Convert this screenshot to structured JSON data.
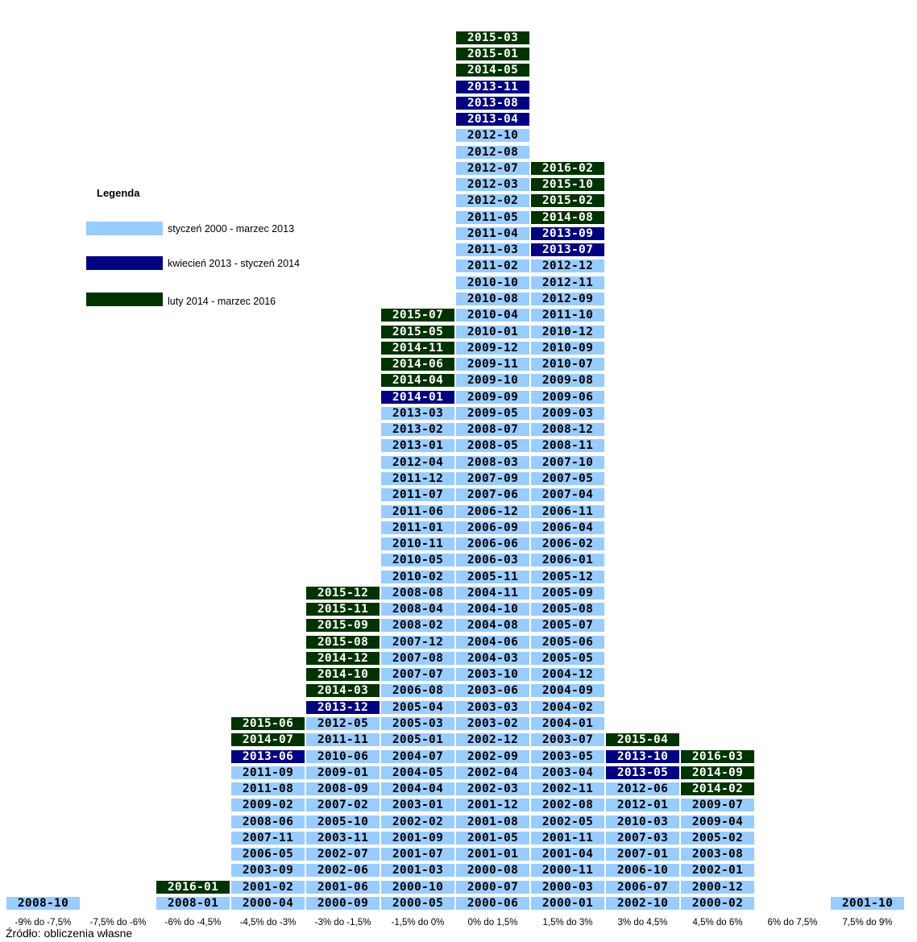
{
  "chart_data": {
    "type": "table",
    "colors": {
      "p1": "#99ccff",
      "p2": "#000080",
      "p3": "#003300"
    },
    "text_colors": {
      "p1": "#000000",
      "p2": "#ffffff",
      "p3": "#ffffff"
    },
    "legend": {
      "title": "Legenda",
      "items": [
        {
          "key": "p1",
          "label": "styczeń 2000 - marzec 2013"
        },
        {
          "key": "p2",
          "label": "kwiecień 2013 - styczeń 2014"
        },
        {
          "key": "p3",
          "label": "luty 2014 - marzec 2016"
        }
      ]
    },
    "categories": [
      "-9% do -7,5%",
      "-7,5% do -6%",
      "-6% do -4,5%",
      "-4,5% do -3%",
      "-3% do -1,5%",
      "-1,5% do 0%",
      "0% do 1,5%",
      "1,5% do 3%",
      "3% do 4,5%",
      "4,5% do 6%",
      "6% do 7,5%",
      "7,5% do 9%"
    ],
    "columns": [
      [
        [
          "2008-10",
          "p1"
        ]
      ],
      [],
      [
        [
          "2008-01",
          "p1"
        ],
        [
          "2016-01",
          "p3"
        ]
      ],
      [
        [
          "2000-04",
          "p1"
        ],
        [
          "2001-02",
          "p1"
        ],
        [
          "2003-09",
          "p1"
        ],
        [
          "2006-05",
          "p1"
        ],
        [
          "2007-11",
          "p1"
        ],
        [
          "2008-06",
          "p1"
        ],
        [
          "2009-02",
          "p1"
        ],
        [
          "2011-08",
          "p1"
        ],
        [
          "2011-09",
          "p1"
        ],
        [
          "2013-06",
          "p2"
        ],
        [
          "2014-07",
          "p3"
        ],
        [
          "2015-06",
          "p3"
        ]
      ],
      [
        [
          "2000-09",
          "p1"
        ],
        [
          "2001-06",
          "p1"
        ],
        [
          "2002-06",
          "p1"
        ],
        [
          "2002-07",
          "p1"
        ],
        [
          "2003-11",
          "p1"
        ],
        [
          "2005-10",
          "p1"
        ],
        [
          "2007-02",
          "p1"
        ],
        [
          "2008-09",
          "p1"
        ],
        [
          "2009-01",
          "p1"
        ],
        [
          "2010-06",
          "p1"
        ],
        [
          "2011-11",
          "p1"
        ],
        [
          "2012-05",
          "p1"
        ],
        [
          "2013-12",
          "p2"
        ],
        [
          "2014-03",
          "p3"
        ],
        [
          "2014-10",
          "p3"
        ],
        [
          "2014-12",
          "p3"
        ],
        [
          "2015-08",
          "p3"
        ],
        [
          "2015-09",
          "p3"
        ],
        [
          "2015-11",
          "p3"
        ],
        [
          "2015-12",
          "p3"
        ]
      ],
      [
        [
          "2000-05",
          "p1"
        ],
        [
          "2000-10",
          "p1"
        ],
        [
          "2001-03",
          "p1"
        ],
        [
          "2001-07",
          "p1"
        ],
        [
          "2001-09",
          "p1"
        ],
        [
          "2002-02",
          "p1"
        ],
        [
          "2003-01",
          "p1"
        ],
        [
          "2004-04",
          "p1"
        ],
        [
          "2004-05",
          "p1"
        ],
        [
          "2004-07",
          "p1"
        ],
        [
          "2005-01",
          "p1"
        ],
        [
          "2005-03",
          "p1"
        ],
        [
          "2005-04",
          "p1"
        ],
        [
          "2006-08",
          "p1"
        ],
        [
          "2007-07",
          "p1"
        ],
        [
          "2007-08",
          "p1"
        ],
        [
          "2007-12",
          "p1"
        ],
        [
          "2008-02",
          "p1"
        ],
        [
          "2008-04",
          "p1"
        ],
        [
          "2008-08",
          "p1"
        ],
        [
          "2010-02",
          "p1"
        ],
        [
          "2010-05",
          "p1"
        ],
        [
          "2010-11",
          "p1"
        ],
        [
          "2011-01",
          "p1"
        ],
        [
          "2011-06",
          "p1"
        ],
        [
          "2011-07",
          "p1"
        ],
        [
          "2011-12",
          "p1"
        ],
        [
          "2012-04",
          "p1"
        ],
        [
          "2013-01",
          "p1"
        ],
        [
          "2013-02",
          "p1"
        ],
        [
          "2013-03",
          "p1"
        ],
        [
          "2014-01",
          "p2"
        ],
        [
          "2014-04",
          "p3"
        ],
        [
          "2014-06",
          "p3"
        ],
        [
          "2014-11",
          "p3"
        ],
        [
          "2015-05",
          "p3"
        ],
        [
          "2015-07",
          "p3"
        ]
      ],
      [
        [
          "2000-06",
          "p1"
        ],
        [
          "2000-07",
          "p1"
        ],
        [
          "2000-08",
          "p1"
        ],
        [
          "2001-01",
          "p1"
        ],
        [
          "2001-05",
          "p1"
        ],
        [
          "2001-08",
          "p1"
        ],
        [
          "2001-12",
          "p1"
        ],
        [
          "2002-03",
          "p1"
        ],
        [
          "2002-04",
          "p1"
        ],
        [
          "2002-09",
          "p1"
        ],
        [
          "2002-12",
          "p1"
        ],
        [
          "2003-02",
          "p1"
        ],
        [
          "2003-03",
          "p1"
        ],
        [
          "2003-06",
          "p1"
        ],
        [
          "2003-10",
          "p1"
        ],
        [
          "2004-03",
          "p1"
        ],
        [
          "2004-06",
          "p1"
        ],
        [
          "2004-08",
          "p1"
        ],
        [
          "2004-10",
          "p1"
        ],
        [
          "2004-11",
          "p1"
        ],
        [
          "2005-11",
          "p1"
        ],
        [
          "2006-03",
          "p1"
        ],
        [
          "2006-06",
          "p1"
        ],
        [
          "2006-09",
          "p1"
        ],
        [
          "2006-12",
          "p1"
        ],
        [
          "2007-06",
          "p1"
        ],
        [
          "2007-09",
          "p1"
        ],
        [
          "2008-03",
          "p1"
        ],
        [
          "2008-05",
          "p1"
        ],
        [
          "2008-07",
          "p1"
        ],
        [
          "2009-05",
          "p1"
        ],
        [
          "2009-09",
          "p1"
        ],
        [
          "2009-10",
          "p1"
        ],
        [
          "2009-11",
          "p1"
        ],
        [
          "2009-12",
          "p1"
        ],
        [
          "2010-01",
          "p1"
        ],
        [
          "2010-04",
          "p1"
        ],
        [
          "2010-08",
          "p1"
        ],
        [
          "2010-10",
          "p1"
        ],
        [
          "2011-02",
          "p1"
        ],
        [
          "2011-03",
          "p1"
        ],
        [
          "2011-04",
          "p1"
        ],
        [
          "2011-05",
          "p1"
        ],
        [
          "2012-02",
          "p1"
        ],
        [
          "2012-03",
          "p1"
        ],
        [
          "2012-07",
          "p1"
        ],
        [
          "2012-08",
          "p1"
        ],
        [
          "2012-10",
          "p1"
        ],
        [
          "2013-04",
          "p2"
        ],
        [
          "2013-08",
          "p2"
        ],
        [
          "2013-11",
          "p2"
        ],
        [
          "2014-05",
          "p3"
        ],
        [
          "2015-01",
          "p3"
        ],
        [
          "2015-03",
          "p3"
        ]
      ],
      [
        [
          "2000-01",
          "p1"
        ],
        [
          "2000-03",
          "p1"
        ],
        [
          "2000-11",
          "p1"
        ],
        [
          "2001-04",
          "p1"
        ],
        [
          "2001-11",
          "p1"
        ],
        [
          "2002-05",
          "p1"
        ],
        [
          "2002-08",
          "p1"
        ],
        [
          "2002-11",
          "p1"
        ],
        [
          "2003-04",
          "p1"
        ],
        [
          "2003-05",
          "p1"
        ],
        [
          "2003-07",
          "p1"
        ],
        [
          "2004-01",
          "p1"
        ],
        [
          "2004-02",
          "p1"
        ],
        [
          "2004-09",
          "p1"
        ],
        [
          "2004-12",
          "p1"
        ],
        [
          "2005-05",
          "p1"
        ],
        [
          "2005-06",
          "p1"
        ],
        [
          "2005-07",
          "p1"
        ],
        [
          "2005-08",
          "p1"
        ],
        [
          "2005-09",
          "p1"
        ],
        [
          "2005-12",
          "p1"
        ],
        [
          "2006-01",
          "p1"
        ],
        [
          "2006-02",
          "p1"
        ],
        [
          "2006-04",
          "p1"
        ],
        [
          "2006-11",
          "p1"
        ],
        [
          "2007-04",
          "p1"
        ],
        [
          "2007-05",
          "p1"
        ],
        [
          "2007-10",
          "p1"
        ],
        [
          "2008-11",
          "p1"
        ],
        [
          "2008-12",
          "p1"
        ],
        [
          "2009-03",
          "p1"
        ],
        [
          "2009-06",
          "p1"
        ],
        [
          "2009-08",
          "p1"
        ],
        [
          "2010-07",
          "p1"
        ],
        [
          "2010-09",
          "p1"
        ],
        [
          "2010-12",
          "p1"
        ],
        [
          "2011-10",
          "p1"
        ],
        [
          "2012-09",
          "p1"
        ],
        [
          "2012-11",
          "p1"
        ],
        [
          "2012-12",
          "p1"
        ],
        [
          "2013-07",
          "p2"
        ],
        [
          "2013-09",
          "p2"
        ],
        [
          "2014-08",
          "p3"
        ],
        [
          "2015-02",
          "p3"
        ],
        [
          "2015-10",
          "p3"
        ],
        [
          "2016-02",
          "p3"
        ]
      ],
      [
        [
          "2002-10",
          "p1"
        ],
        [
          "2006-07",
          "p1"
        ],
        [
          "2006-10",
          "p1"
        ],
        [
          "2007-01",
          "p1"
        ],
        [
          "2007-03",
          "p1"
        ],
        [
          "2010-03",
          "p1"
        ],
        [
          "2012-01",
          "p1"
        ],
        [
          "2012-06",
          "p1"
        ],
        [
          "2013-05",
          "p2"
        ],
        [
          "2013-10",
          "p2"
        ],
        [
          "2015-04",
          "p3"
        ]
      ],
      [
        [
          "2000-02",
          "p1"
        ],
        [
          "2000-12",
          "p1"
        ],
        [
          "2002-01",
          "p1"
        ],
        [
          "2003-08",
          "p1"
        ],
        [
          "2005-02",
          "p1"
        ],
        [
          "2009-04",
          "p1"
        ],
        [
          "2009-07",
          "p1"
        ],
        [
          "2014-02",
          "p3"
        ],
        [
          "2014-09",
          "p3"
        ],
        [
          "2016-03",
          "p3"
        ]
      ],
      [],
      [
        [
          "2001-10",
          "p1"
        ]
      ]
    ],
    "source": "Źródło: obliczenia własne"
  }
}
